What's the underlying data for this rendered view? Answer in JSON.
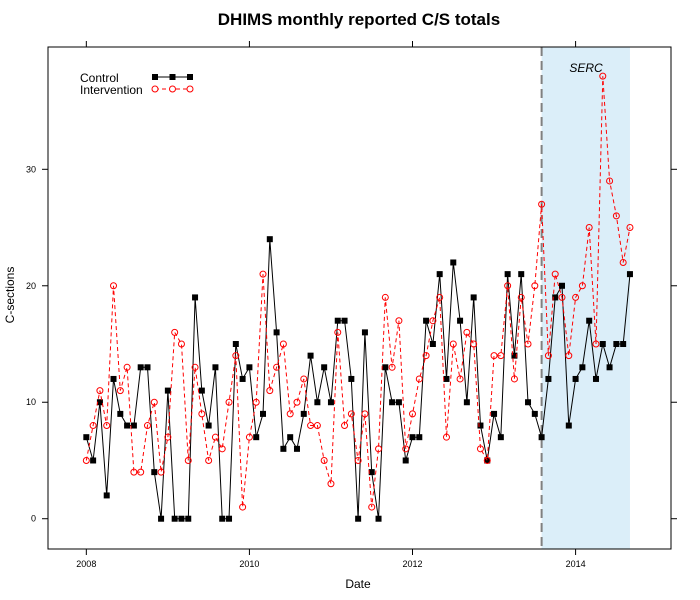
{
  "chart_data": {
    "type": "line",
    "title": "DHIMS monthly reported C/S totals",
    "xlabel": "Date",
    "ylabel": "C-sections",
    "x_ticks": [
      "2008",
      "2010",
      "2012",
      "2014"
    ],
    "y_ticks": [
      "0",
      "10",
      "20",
      "30"
    ],
    "xlim": [
      2007.53,
      2015.17
    ],
    "ylim": [
      -2.6,
      40.5
    ],
    "x_start": "2008-01",
    "x_step_months": 1,
    "annotation": {
      "label": "SERC",
      "start": "2013-08",
      "end": "2014-09",
      "shade_color": "#dbeef9",
      "line_color": "#808080"
    },
    "legend": {
      "position": "top-left"
    },
    "series": [
      {
        "name": "Control",
        "color": "#000000",
        "marker": "square",
        "dash": "solid",
        "values": [
          7,
          5,
          10,
          2,
          12,
          9,
          8,
          8,
          13,
          13,
          4,
          0,
          11,
          0,
          0,
          0,
          19,
          11,
          8,
          13,
          0,
          0,
          15,
          12,
          13,
          7,
          9,
          24,
          16,
          6,
          7,
          6,
          9,
          14,
          10,
          13,
          10,
          17,
          17,
          12,
          0,
          16,
          4,
          0,
          13,
          10,
          10,
          5,
          7,
          7,
          17,
          15,
          21,
          12,
          22,
          17,
          10,
          19,
          8,
          5,
          9,
          7,
          21,
          14,
          21,
          10,
          9,
          7,
          12,
          19,
          20,
          8,
          12,
          13,
          17,
          12,
          15,
          13,
          15,
          15,
          21
        ]
      },
      {
        "name": "Intervention",
        "color": "#ff0000",
        "marker": "circle",
        "dash": "dashed",
        "values": [
          5,
          8,
          11,
          8,
          20,
          11,
          13,
          4,
          4,
          8,
          10,
          4,
          7,
          16,
          15,
          5,
          13,
          9,
          5,
          7,
          6,
          10,
          14,
          1,
          7,
          10,
          21,
          11,
          13,
          15,
          9,
          10,
          12,
          8,
          8,
          5,
          3,
          16,
          8,
          9,
          5,
          9,
          1,
          6,
          19,
          13,
          17,
          6,
          9,
          12,
          14,
          17,
          19,
          7,
          15,
          12,
          16,
          15,
          6,
          5,
          14,
          14,
          20,
          12,
          19,
          15,
          20,
          27,
          14,
          21,
          19,
          14,
          19,
          20,
          25,
          15,
          38,
          29,
          26,
          22,
          25
        ]
      }
    ]
  }
}
